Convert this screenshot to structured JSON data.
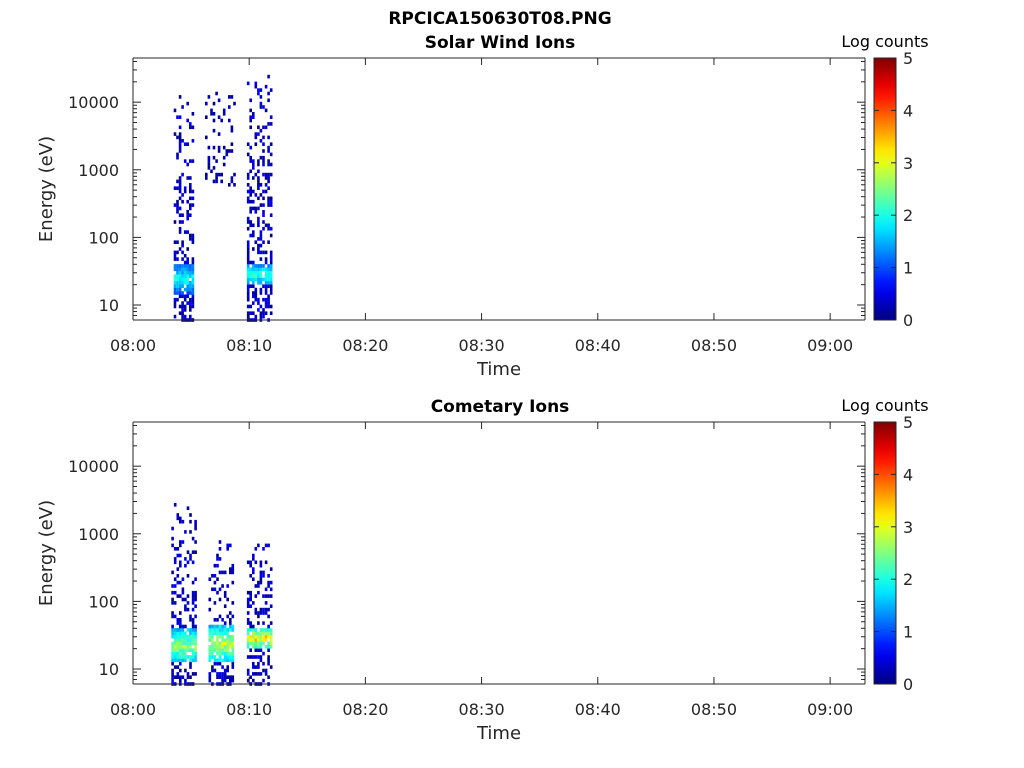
{
  "figure": {
    "title": "RPCICA150630T08.PNG"
  },
  "colormap": "jet",
  "chart_data": [
    {
      "type": "heatmap",
      "title": "Solar Wind Ions",
      "xlabel": "Time",
      "ylabel": "Energy (eV)",
      "yscale": "log",
      "xlim": [
        "08:00",
        "09:03"
      ],
      "ylim": [
        6,
        45000
      ],
      "xticks": [
        "08:00",
        "08:10",
        "08:20",
        "08:30",
        "08:40",
        "08:50",
        "09:00"
      ],
      "yticks": [
        "10",
        "100",
        "1000",
        "10000"
      ],
      "colorbar": {
        "label": "Log counts",
        "range": [
          0,
          5
        ],
        "ticks": [
          "0",
          "1",
          "2",
          "3",
          "4",
          "5"
        ]
      },
      "clusters": [
        {
          "time_min": [
            3.5,
            5.2
          ],
          "energy_eV": [
            6,
            15000
          ],
          "max_log_counts": 2.2,
          "core_energy_eV": [
            15,
            40
          ]
        },
        {
          "time_min": [
            6.2,
            8.8
          ],
          "energy_eV": [
            600,
            16000
          ],
          "max_log_counts": 0.5
        },
        {
          "time_min": [
            9.8,
            11.8
          ],
          "energy_eV": [
            6,
            30000
          ],
          "max_log_counts": 2.5,
          "core_energy_eV": [
            20,
            40
          ]
        }
      ]
    },
    {
      "type": "heatmap",
      "title": "Cometary Ions",
      "xlabel": "Time",
      "ylabel": "Energy (eV)",
      "yscale": "log",
      "xlim": [
        "08:00",
        "09:03"
      ],
      "ylim": [
        6,
        45000
      ],
      "xticks": [
        "08:00",
        "08:10",
        "08:20",
        "08:30",
        "08:40",
        "08:50",
        "09:00"
      ],
      "yticks": [
        "10",
        "100",
        "1000",
        "10000"
      ],
      "colorbar": {
        "label": "Log counts",
        "range": [
          0,
          5
        ],
        "ticks": [
          "0",
          "1",
          "2",
          "3",
          "4",
          "5"
        ]
      },
      "clusters": [
        {
          "time_min": [
            3.3,
            5.3
          ],
          "energy_eV": [
            6,
            3000
          ],
          "max_log_counts": 3.0,
          "core_energy_eV": [
            12,
            40
          ]
        },
        {
          "time_min": [
            6.5,
            8.5
          ],
          "energy_eV": [
            6,
            800
          ],
          "max_log_counts": 3.2,
          "core_energy_eV": [
            12,
            45
          ]
        },
        {
          "time_min": [
            9.8,
            11.8
          ],
          "energy_eV": [
            6,
            800
          ],
          "max_log_counts": 3.8,
          "core_energy_eV": [
            20,
            40
          ]
        }
      ]
    }
  ]
}
